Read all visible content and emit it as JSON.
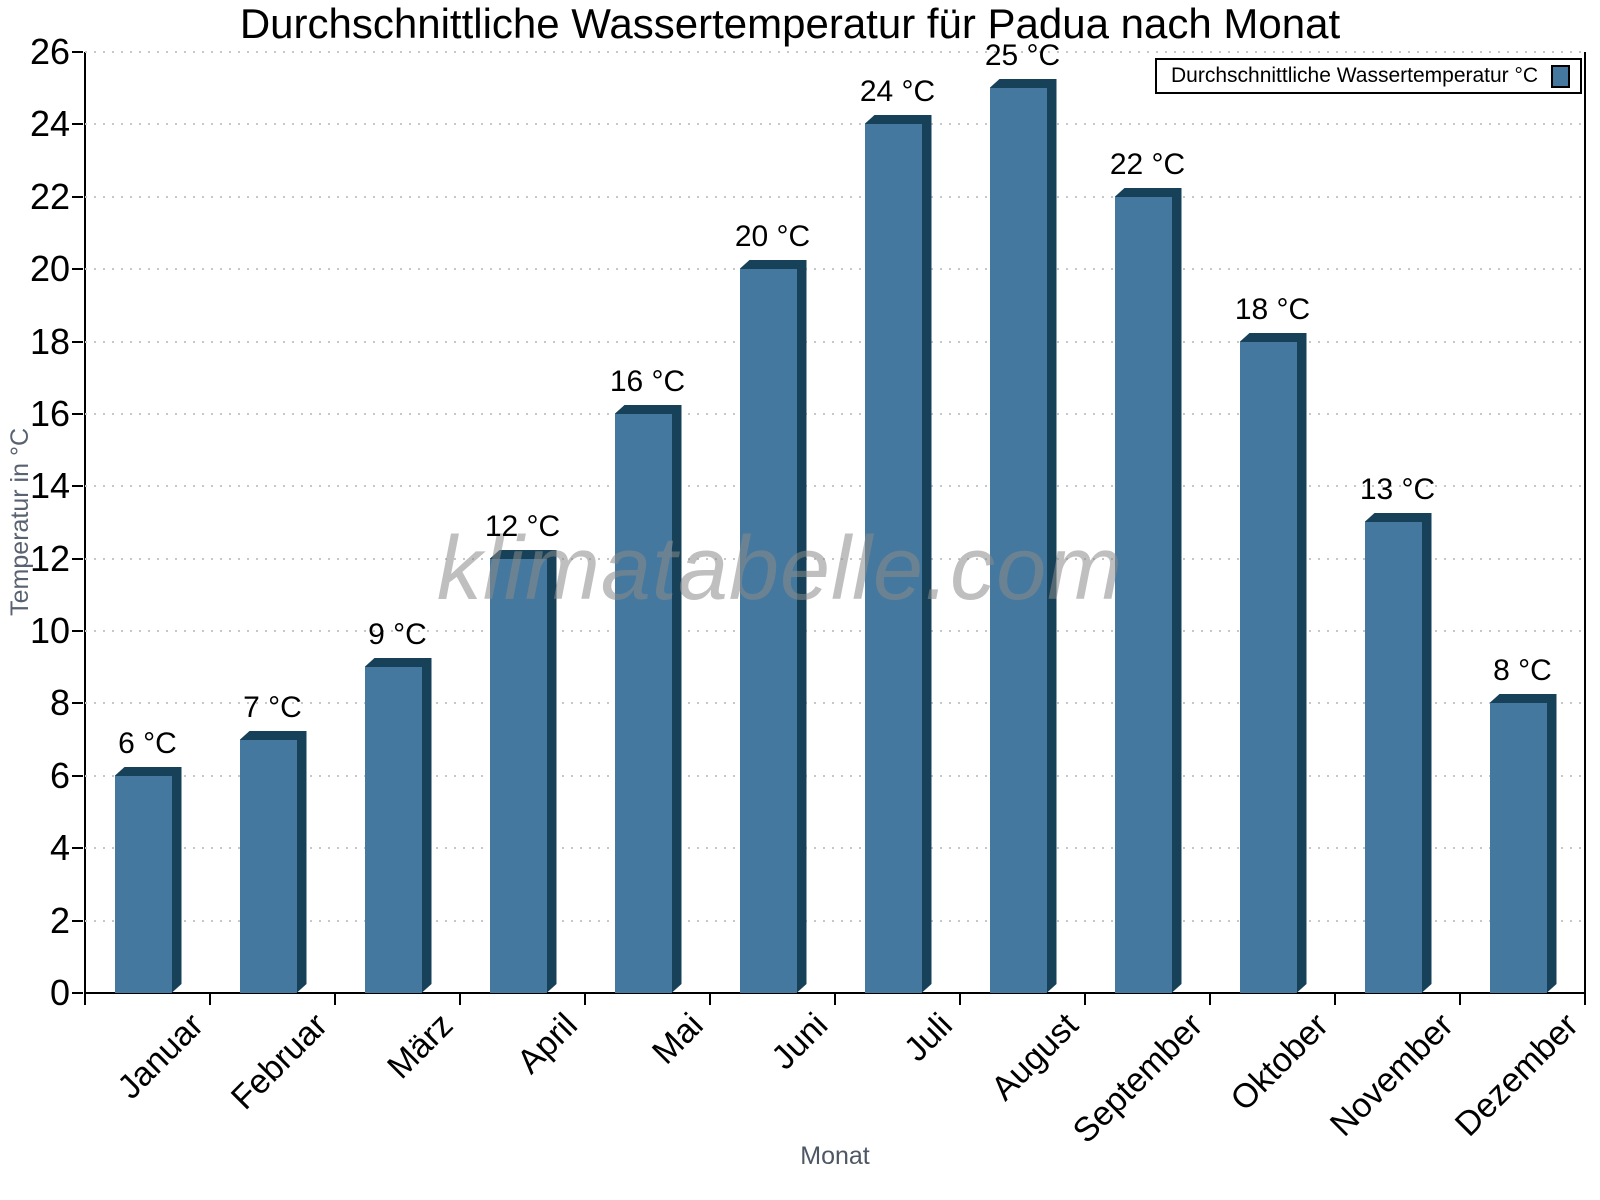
{
  "watermark": "klimatabelle.com",
  "chart_data": {
    "type": "bar",
    "title": "Durchschnittliche Wassertemperatur für Padua nach Monat",
    "xlabel": "Monat",
    "ylabel": "Temperatur in °C",
    "legend_label": "Durchschnittliche Wassertemperatur °C",
    "legend_position": "top-right",
    "categories": [
      "Januar",
      "Februar",
      "März",
      "April",
      "Mai",
      "Juni",
      "Juli",
      "August",
      "September",
      "Oktober",
      "November",
      "Dezember"
    ],
    "values": [
      6,
      7,
      9,
      12,
      16,
      20,
      24,
      25,
      22,
      18,
      13,
      8
    ],
    "bar_labels": [
      "6 °C",
      "7 °C",
      "9 °C",
      "12 °C",
      "16 °C",
      "20 °C",
      "24 °C",
      "25 °C",
      "22 °C",
      "18 °C",
      "13 °C",
      "8 °C"
    ],
    "ylim": [
      0,
      26
    ],
    "ytick_step": 2,
    "yticks": [
      0,
      2,
      4,
      6,
      8,
      10,
      12,
      14,
      16,
      18,
      20,
      22,
      24,
      26
    ],
    "grid": "horizontal-dotted",
    "bar_color": "#45789E",
    "bar_edge_color": "#164158",
    "grid_color": "#c7c7c7"
  }
}
